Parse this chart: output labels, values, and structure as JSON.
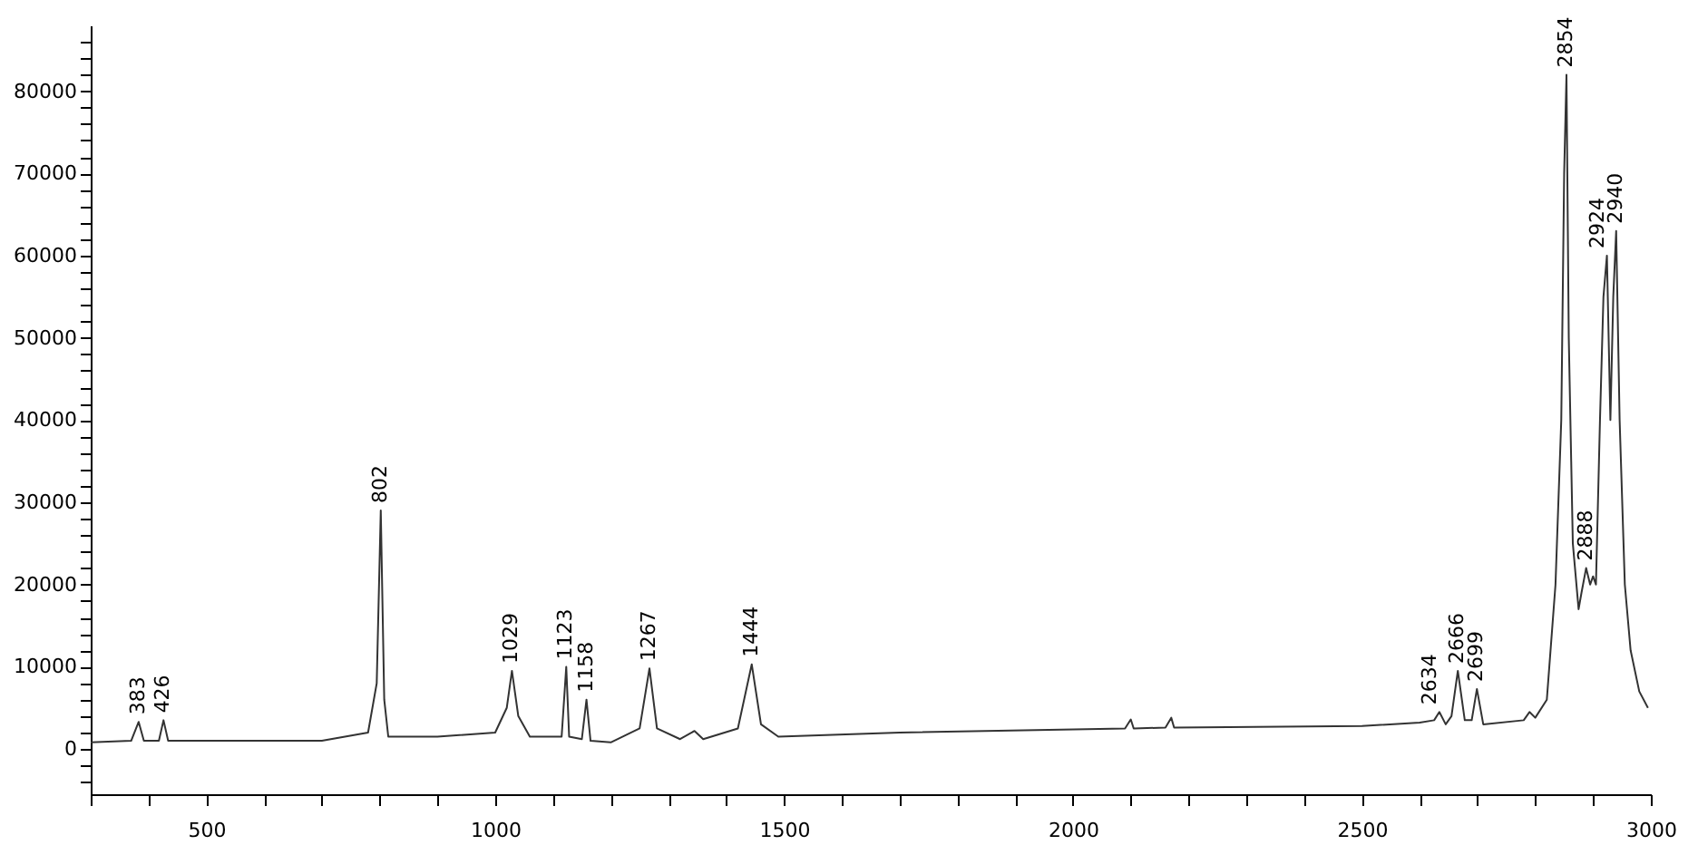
{
  "chart_data": {
    "type": "line",
    "xlim": [
      300,
      3000
    ],
    "ylim": [
      -5500,
      88000
    ],
    "xticks": [
      {
        "value": 300,
        "label": null
      },
      {
        "value": 400,
        "label": null
      },
      500,
      {
        "value": 600,
        "label": null
      },
      {
        "value": 700,
        "label": null
      },
      {
        "value": 800,
        "label": null
      },
      {
        "value": 900,
        "label": null
      },
      1000,
      {
        "value": 1100,
        "label": null
      },
      {
        "value": 1200,
        "label": null
      },
      {
        "value": 1300,
        "label": null
      },
      {
        "value": 1400,
        "label": null
      },
      1500,
      {
        "value": 1600,
        "label": null
      },
      {
        "value": 1700,
        "label": null
      },
      {
        "value": 1800,
        "label": null
      },
      {
        "value": 1900,
        "label": null
      },
      2000,
      {
        "value": 2100,
        "label": null
      },
      {
        "value": 2200,
        "label": null
      },
      {
        "value": 2300,
        "label": null
      },
      {
        "value": 2400,
        "label": null
      },
      2500,
      {
        "value": 2600,
        "label": null
      },
      {
        "value": 2700,
        "label": null
      },
      {
        "value": 2800,
        "label": null
      },
      {
        "value": 2900,
        "label": null
      },
      3000
    ],
    "yticks": [
      {
        "value": -4000,
        "label": null
      },
      {
        "value": -2000,
        "label": null
      },
      0,
      {
        "value": 2000,
        "label": null
      },
      {
        "value": 4000,
        "label": null
      },
      {
        "value": 6000,
        "label": null
      },
      {
        "value": 8000,
        "label": null
      },
      10000,
      {
        "value": 12000,
        "label": null
      },
      {
        "value": 14000,
        "label": null
      },
      {
        "value": 16000,
        "label": null
      },
      {
        "value": 18000,
        "label": null
      },
      20000,
      {
        "value": 22000,
        "label": null
      },
      {
        "value": 24000,
        "label": null
      },
      {
        "value": 26000,
        "label": null
      },
      {
        "value": 28000,
        "label": null
      },
      30000,
      {
        "value": 32000,
        "label": null
      },
      {
        "value": 34000,
        "label": null
      },
      {
        "value": 36000,
        "label": null
      },
      {
        "value": 38000,
        "label": null
      },
      40000,
      {
        "value": 42000,
        "label": null
      },
      {
        "value": 44000,
        "label": null
      },
      {
        "value": 46000,
        "label": null
      },
      {
        "value": 48000,
        "label": null
      },
      50000,
      {
        "value": 52000,
        "label": null
      },
      {
        "value": 54000,
        "label": null
      },
      {
        "value": 56000,
        "label": null
      },
      {
        "value": 58000,
        "label": null
      },
      60000,
      {
        "value": 62000,
        "label": null
      },
      {
        "value": 64000,
        "label": null
      },
      {
        "value": 66000,
        "label": null
      },
      {
        "value": 68000,
        "label": null
      },
      70000,
      {
        "value": 72000,
        "label": null
      },
      {
        "value": 74000,
        "label": null
      },
      {
        "value": 76000,
        "label": null
      },
      {
        "value": 78000,
        "label": null
      },
      80000,
      {
        "value": 82000,
        "label": null
      },
      {
        "value": 84000,
        "label": null
      },
      {
        "value": 86000,
        "label": null
      }
    ],
    "grid": false,
    "series": [
      {
        "color": "#333333",
        "x": [
          300,
          370,
          383,
          392,
          418,
          426,
          434,
          500,
          700,
          780,
          795,
          802,
          808,
          815,
          900,
          1000,
          1020,
          1029,
          1040,
          1060,
          1115,
          1123,
          1128,
          1150,
          1158,
          1165,
          1200,
          1250,
          1267,
          1280,
          1320,
          1345,
          1360,
          1420,
          1444,
          1460,
          1490,
          1700,
          2090,
          2100,
          2105,
          2160,
          2170,
          2175,
          2500,
          2600,
          2625,
          2634,
          2645,
          2655,
          2666,
          2678,
          2690,
          2699,
          2710,
          2780,
          2790,
          2800,
          2820,
          2835,
          2845,
          2850,
          2854,
          2858,
          2865,
          2875,
          2880,
          2888,
          2895,
          2900,
          2905,
          2912,
          2918,
          2924,
          2930,
          2935,
          2940,
          2946,
          2955,
          2965,
          2980,
          2995
        ],
        "values": [
          800,
          1000,
          3300,
          1000,
          1000,
          3500,
          1000,
          1000,
          1000,
          2000,
          8000,
          29000,
          6000,
          1500,
          1500,
          2000,
          5000,
          9500,
          4000,
          1500,
          1500,
          10000,
          1500,
          1200,
          6000,
          1000,
          800,
          2500,
          9800,
          2500,
          1200,
          2200,
          1200,
          2500,
          10300,
          3000,
          1500,
          2000,
          2500,
          3600,
          2500,
          2600,
          3800,
          2600,
          2800,
          3200,
          3500,
          4500,
          3000,
          4000,
          9500,
          3500,
          3500,
          7300,
          3000,
          3500,
          4500,
          3800,
          6000,
          20000,
          40000,
          70000,
          82000,
          50000,
          25000,
          17000,
          19000,
          22000,
          20000,
          21000,
          20000,
          40000,
          55000,
          60000,
          40000,
          55000,
          63000,
          40000,
          20000,
          12000,
          7000,
          5000
        ]
      }
    ],
    "annotations": [
      {
        "text": "383",
        "x": 383,
        "y": 3300
      },
      {
        "text": "426",
        "x": 426,
        "y": 3500
      },
      {
        "text": "802",
        "x": 802,
        "y": 29000
      },
      {
        "text": "1029",
        "x": 1029,
        "y": 9500
      },
      {
        "text": "1123",
        "x": 1123,
        "y": 10000
      },
      {
        "text": "1158",
        "x": 1158,
        "y": 6000
      },
      {
        "text": "1267",
        "x": 1267,
        "y": 9800
      },
      {
        "text": "1444",
        "x": 1444,
        "y": 10300
      },
      {
        "text": "2634",
        "x": 2634,
        "y": 4500
      },
      {
        "text": "2666",
        "x": 2666,
        "y": 9500
      },
      {
        "text": "2699",
        "x": 2699,
        "y": 7300
      },
      {
        "text": "2854",
        "x": 2854,
        "y": 82000
      },
      {
        "text": "2888",
        "x": 2888,
        "y": 22000
      },
      {
        "text": "2924",
        "x": 2924,
        "y": 60000
      },
      {
        "text": "2940",
        "x": 2940,
        "y": 63000
      }
    ]
  }
}
